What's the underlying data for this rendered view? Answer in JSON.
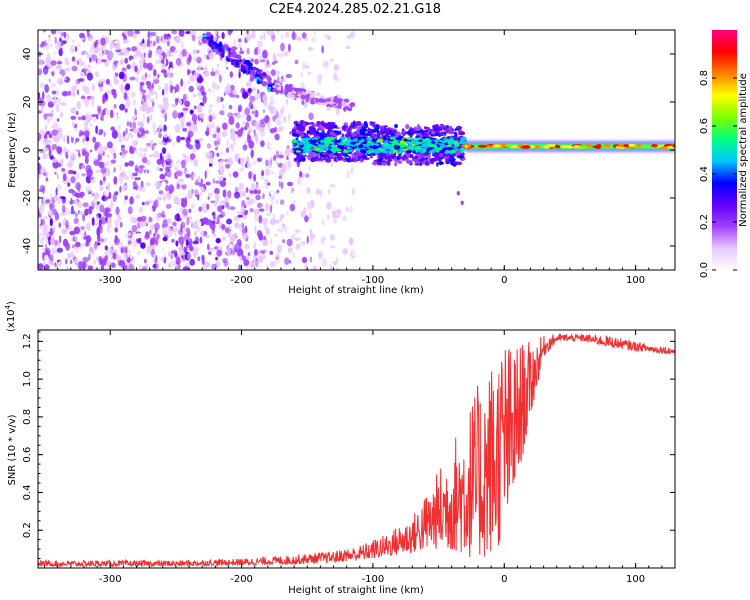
{
  "title": "C2E4.2024.285.02.21.G18",
  "chart_data": [
    {
      "type": "heatmap",
      "xlabel": "Height of straight line (km)",
      "ylabel": "Frequency (Hz)",
      "xlim": [
        -355,
        130
      ],
      "ylim": [
        -50,
        50
      ],
      "x_ticks": [
        -300,
        -200,
        -100,
        0,
        100
      ],
      "x_tick_labels": [
        "-300",
        "-200",
        "-100",
        "0",
        "100"
      ],
      "y_ticks": [
        -40,
        -20,
        0,
        20,
        40
      ],
      "y_tick_labels": [
        "-40",
        "-20",
        "0",
        "20",
        "40"
      ],
      "colorbar": {
        "label": "Normalized spectral amplitude",
        "range": [
          0,
          1
        ],
        "ticks": [
          0,
          0.2,
          0.4,
          0.6,
          0.8
        ],
        "tick_labels": [
          "0.0",
          "0.2",
          "0.4",
          "0.6",
          "0.8"
        ],
        "colors": [
          "#ffffff",
          "#e8c8ff",
          "#a040ff",
          "#6000ff",
          "#0000ff",
          "#00c8ff",
          "#00ff80",
          "#80ff00",
          "#ffff00",
          "#ff8000",
          "#ff0000",
          "#ff0080"
        ]
      },
      "features": [
        {
          "x": [
            -355,
            -150
          ],
          "y": [
            -50,
            50
          ],
          "level": 0.15
        },
        {
          "x": [
            -230,
            -175
          ],
          "y": [
            48,
            26
          ],
          "level": 0.25
        },
        {
          "x": [
            -175,
            -115
          ],
          "y": [
            26,
            18
          ],
          "level": 0.15
        },
        {
          "x": [
            -160,
            -30
          ],
          "y": [
            2,
            2
          ],
          "level": 0.35
        },
        {
          "x": [
            -30,
            130
          ],
          "y": [
            1.5,
            1.5
          ],
          "level": 0.6
        }
      ]
    },
    {
      "type": "line",
      "xlabel": "Height of straight line (km)",
      "ylabel": "SNR (10 * v/v)",
      "y_scale_label": "(x10",
      "y_scale_exponent": "4",
      "y_scale_suffix": ")",
      "xlim": [
        -355,
        130
      ],
      "ylim": [
        0,
        1.26
      ],
      "x_ticks": [
        -300,
        -200,
        -100,
        0,
        100
      ],
      "x_tick_labels": [
        "-300",
        "-200",
        "-100",
        "0",
        "100"
      ],
      "y_ticks": [
        0.2,
        0.4,
        0.6,
        0.8,
        1.0,
        1.2
      ],
      "y_tick_labels": [
        "0.2",
        "0.4",
        "0.6",
        "0.8",
        "1.0",
        "1.2"
      ],
      "series": [
        {
          "color": "#f03030",
          "envelope": {
            "x": [
              -355,
              -250,
              -200,
              -160,
              -130,
              -110,
              -90,
              -70,
              -55,
              -45,
              -35,
              -25,
              -15,
              -5,
              0,
              5,
              10,
              20,
              30,
              40,
              60,
              80,
              100,
              115,
              130
            ],
            "low": [
              0.01,
              0.01,
              0.015,
              0.02,
              0.03,
              0.04,
              0.06,
              0.08,
              0.1,
              0.1,
              0.08,
              0.05,
              0.05,
              0.1,
              0.2,
              0.3,
              0.45,
              0.8,
              1.12,
              1.2,
              1.2,
              1.17,
              1.15,
              1.14,
              1.13
            ],
            "high": [
              0.04,
              0.04,
              0.05,
              0.07,
              0.09,
              0.12,
              0.18,
              0.28,
              0.45,
              0.6,
              0.75,
              0.9,
              1.05,
              1.18,
              1.26,
              1.18,
              1.2,
              1.2,
              1.23,
              1.24,
              1.24,
              1.23,
              1.2,
              1.18,
              1.17
            ]
          }
        }
      ]
    }
  ]
}
